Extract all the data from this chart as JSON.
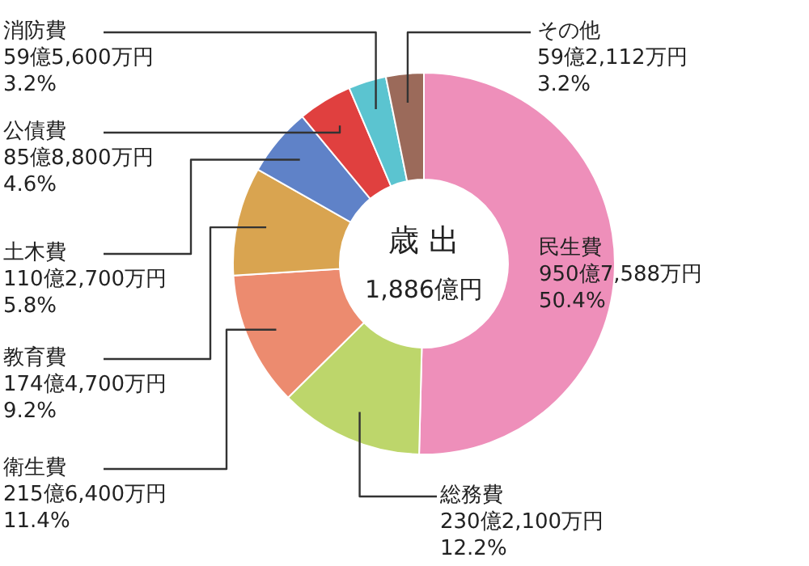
{
  "chart_data": {
    "type": "donut",
    "categories": [
      "民生費",
      "総務費",
      "衛生費",
      "教育費",
      "土木費",
      "公債費",
      "消防費",
      "その他"
    ],
    "values": [
      50.4,
      12.2,
      11.4,
      9.2,
      5.8,
      4.6,
      3.2,
      3.2
    ],
    "colors": [
      "#ee8fba",
      "#bdd66b",
      "#ec8b6f",
      "#d9a450",
      "#5f82c8",
      "#e0403f",
      "#5bc4d0",
      "#9b6a5a"
    ],
    "value_labels": [
      "950億7,588万円\n50.4%",
      "230億2,100万円\n12.2%",
      "215億6,400万円\n11.4%",
      "174億4,700万円\n9.2%",
      "110億2,700万円\n5.8%",
      "85億8,800万円\n4.6%",
      "59億5,600万円\n3.2%",
      "59億2,112万円\n3.2%"
    ],
    "annotations": [
      "歳 出",
      "1,886億円"
    ]
  }
}
